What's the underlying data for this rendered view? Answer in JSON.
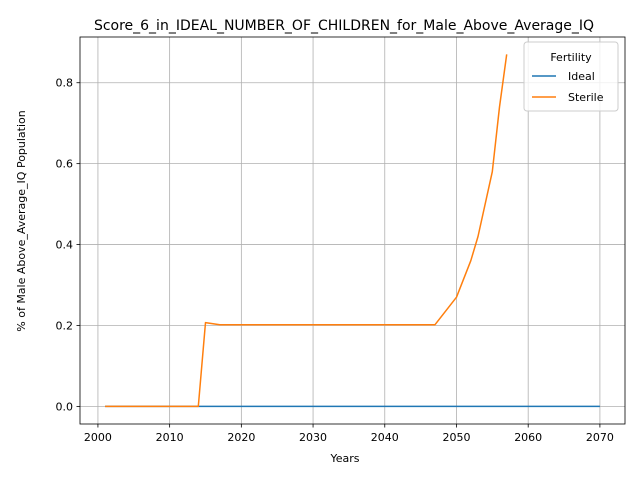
{
  "chart_data": {
    "type": "line",
    "title": "Score_6_in_IDEAL_NUMBER_OF_CHILDREN_for_Male_Above_Average_IQ",
    "xlabel": "Years",
    "ylabel": "% of Male Above_Average_IQ Population",
    "xlim": [
      1997.5,
      2073.5
    ],
    "ylim": [
      -0.0435,
      0.913
    ],
    "x_ticks": [
      2000,
      2010,
      2020,
      2030,
      2040,
      2050,
      2060,
      2070
    ],
    "y_ticks": [
      0.0,
      0.2,
      0.4,
      0.6,
      0.8
    ],
    "y_tick_labels": [
      "0.0",
      "0.2",
      "0.4",
      "0.6",
      "0.8"
    ],
    "grid": true,
    "legend": {
      "title": "Fertility",
      "placement": "top-right"
    },
    "series": [
      {
        "name": "Ideal",
        "color": "#1f77b4",
        "x": [
          2001,
          2070
        ],
        "y": [
          0.0,
          0.0
        ]
      },
      {
        "name": "Sterile",
        "color": "#ff7f0e",
        "x": [
          2001,
          2004,
          2014,
          2015,
          2017,
          2020,
          2030,
          2040,
          2047,
          2050,
          2052,
          2053,
          2055,
          2056,
          2057
        ],
        "y": [
          0.0,
          0.0,
          0.0,
          0.207,
          0.202,
          0.202,
          0.202,
          0.202,
          0.202,
          0.27,
          0.36,
          0.42,
          0.58,
          0.74,
          0.87
        ]
      }
    ]
  }
}
